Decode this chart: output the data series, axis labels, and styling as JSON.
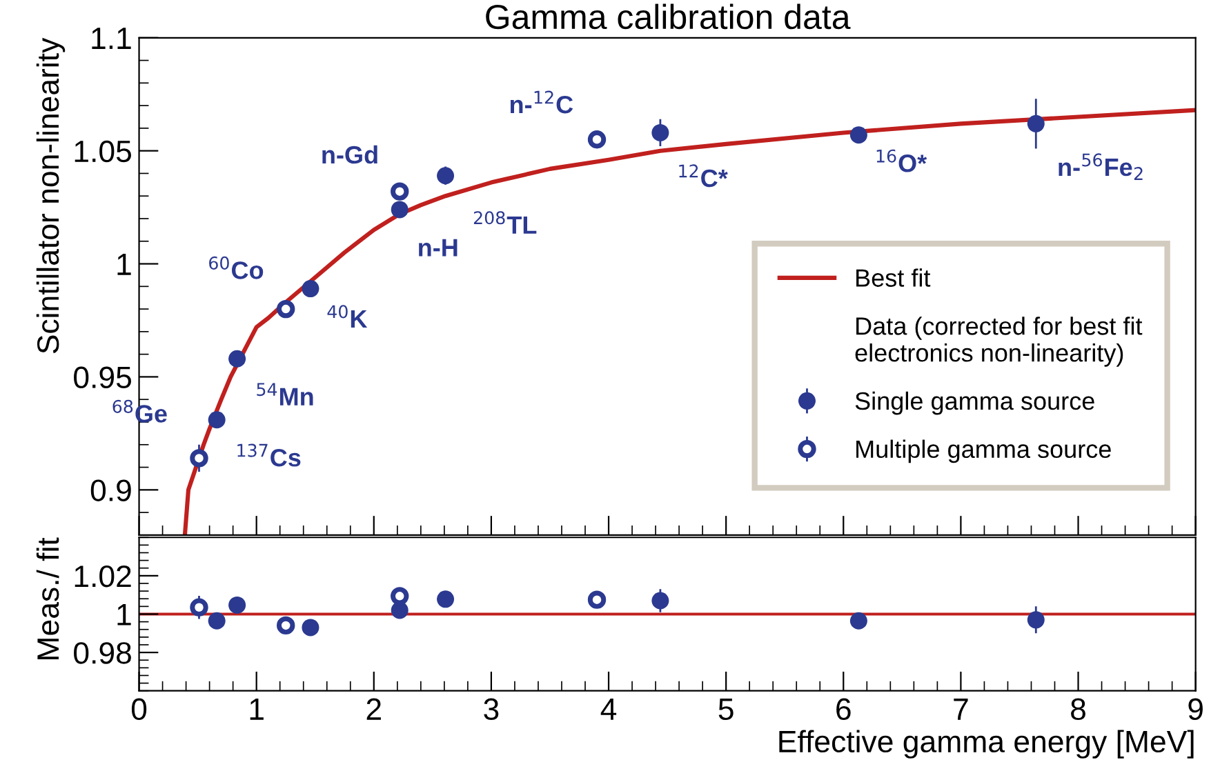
{
  "chart_data": [
    {
      "type": "scatter",
      "title": "Gamma calibration data",
      "ylabel": "Scintillator non-linearity",
      "legend_title": "Data (corrected for best fit electronics non-linearity)",
      "xlim": [
        0,
        9
      ],
      "xticks": [
        0,
        1,
        2,
        3,
        4,
        5,
        6,
        7,
        8,
        9
      ],
      "ylim": [
        0.88,
        1.1
      ],
      "yticks": [
        0.9,
        0.95,
        1,
        1.05,
        1.1
      ],
      "tick_labels": "y",
      "grid": false,
      "legend": "lower right",
      "series": [
        {
          "name": "Best fit",
          "type": "line",
          "color": "#c0201e",
          "line_style": "solid",
          "x": [
            0.39,
            0.42,
            0.55,
            0.6,
            0.7,
            0.78,
            0.9,
            1.0,
            1.1,
            1.25,
            1.5,
            1.75,
            2.0,
            2.22,
            2.4,
            2.61,
            3.0,
            3.5,
            4.0,
            4.44,
            5.0,
            6.0,
            7.0,
            8.0,
            9.0
          ],
          "values": [
            0.88,
            0.9,
            0.92,
            0.927,
            0.94,
            0.95,
            0.962,
            0.972,
            0.976,
            0.983,
            0.994,
            1.005,
            1.015,
            1.022,
            1.026,
            1.03,
            1.036,
            1.042,
            1.046,
            1.05,
            1.053,
            1.058,
            1.062,
            1.065,
            1.068
          ]
        },
        {
          "name": "Single gamma source",
          "marker": "circle",
          "color": "#2b3990",
          "x": [
            0.662,
            0.835,
            1.46,
            2.22,
            2.61,
            4.44,
            6.13,
            7.64
          ],
          "values": [
            0.931,
            0.958,
            0.989,
            1.024,
            1.039,
            1.058,
            1.057,
            1.062
          ],
          "errors": [
            0.003,
            0.002,
            0.003,
            0.003,
            0.004,
            0.006,
            0.003,
            0.011
          ]
        },
        {
          "name": "Multiple gamma source",
          "marker": "circle",
          "color": "#2b3990",
          "x": [
            0.511,
            1.25,
            2.22,
            3.9
          ],
          "values": [
            0.914,
            0.98,
            1.032,
            1.055
          ],
          "errors": [
            0.006,
            0.002,
            0.003,
            0.003
          ]
        }
      ],
      "annotations": [
        {
          "text": "$^{137}$Cs",
          "x": 0.662,
          "y": 0.931
        },
        {
          "text": "$^{54}$Mn",
          "x": 0.835,
          "y": 0.958
        },
        {
          "text": "$^{40}$K",
          "x": 1.46,
          "y": 0.989
        },
        {
          "text": "n-H",
          "x": 2.22,
          "y": 1.024
        },
        {
          "text": "$^{208}$TL",
          "x": 2.61,
          "y": 1.039
        },
        {
          "text": "$^{12}$C*",
          "x": 4.44,
          "y": 1.058
        },
        {
          "text": "$^{16}$O*",
          "x": 6.13,
          "y": 1.057
        },
        {
          "text": "n-$^{56}$Fe$_{2}$",
          "x": 7.64,
          "y": 1.062
        },
        {
          "text": "$^{68}$Ge",
          "x": 0.511,
          "y": 0.914
        },
        {
          "text": "$^{60}$Co",
          "x": 1.25,
          "y": 0.98
        },
        {
          "text": "n-Gd",
          "x": 2.22,
          "y": 1.032
        },
        {
          "text": "n-$^{12}$C",
          "x": 3.9,
          "y": 1.055
        }
      ]
    },
    {
      "type": "scatter",
      "xlabel": "Effective gamma energy [MeV]",
      "ylabel": "Meas./ fit",
      "xlim": [
        0,
        9
      ],
      "xticks": [
        0,
        1,
        2,
        3,
        4,
        5,
        6,
        7,
        8,
        9
      ],
      "ylim": [
        0.96,
        1.04
      ],
      "yticks": [
        0.98,
        1,
        1.02
      ],
      "grid": false,
      "ref_lines": [
        {
          "axis": "y",
          "value": 1,
          "color": "#c0201e",
          "line_style": "solid"
        }
      ],
      "series": [
        {
          "marker": "circle",
          "color": "#2b3990",
          "x": [
            0.662,
            0.835,
            1.46,
            2.22,
            2.61,
            4.44,
            6.13,
            7.64
          ],
          "values": [
            0.9965,
            1.0047,
            0.993,
            1.002,
            1.0078,
            1.007,
            0.9965,
            0.997
          ],
          "errors": [
            0.003,
            0.002,
            0.003,
            0.003,
            0.004,
            0.006,
            0.002,
            0.007
          ]
        },
        {
          "marker": "circle",
          "color": "#2b3990",
          "x": [
            0.511,
            1.25,
            2.22,
            3.9
          ],
          "values": [
            1.0035,
            0.9941,
            1.0094,
            1.0075
          ],
          "errors": [
            0.006,
            0.001,
            0.003,
            0.002
          ]
        }
      ]
    }
  ]
}
